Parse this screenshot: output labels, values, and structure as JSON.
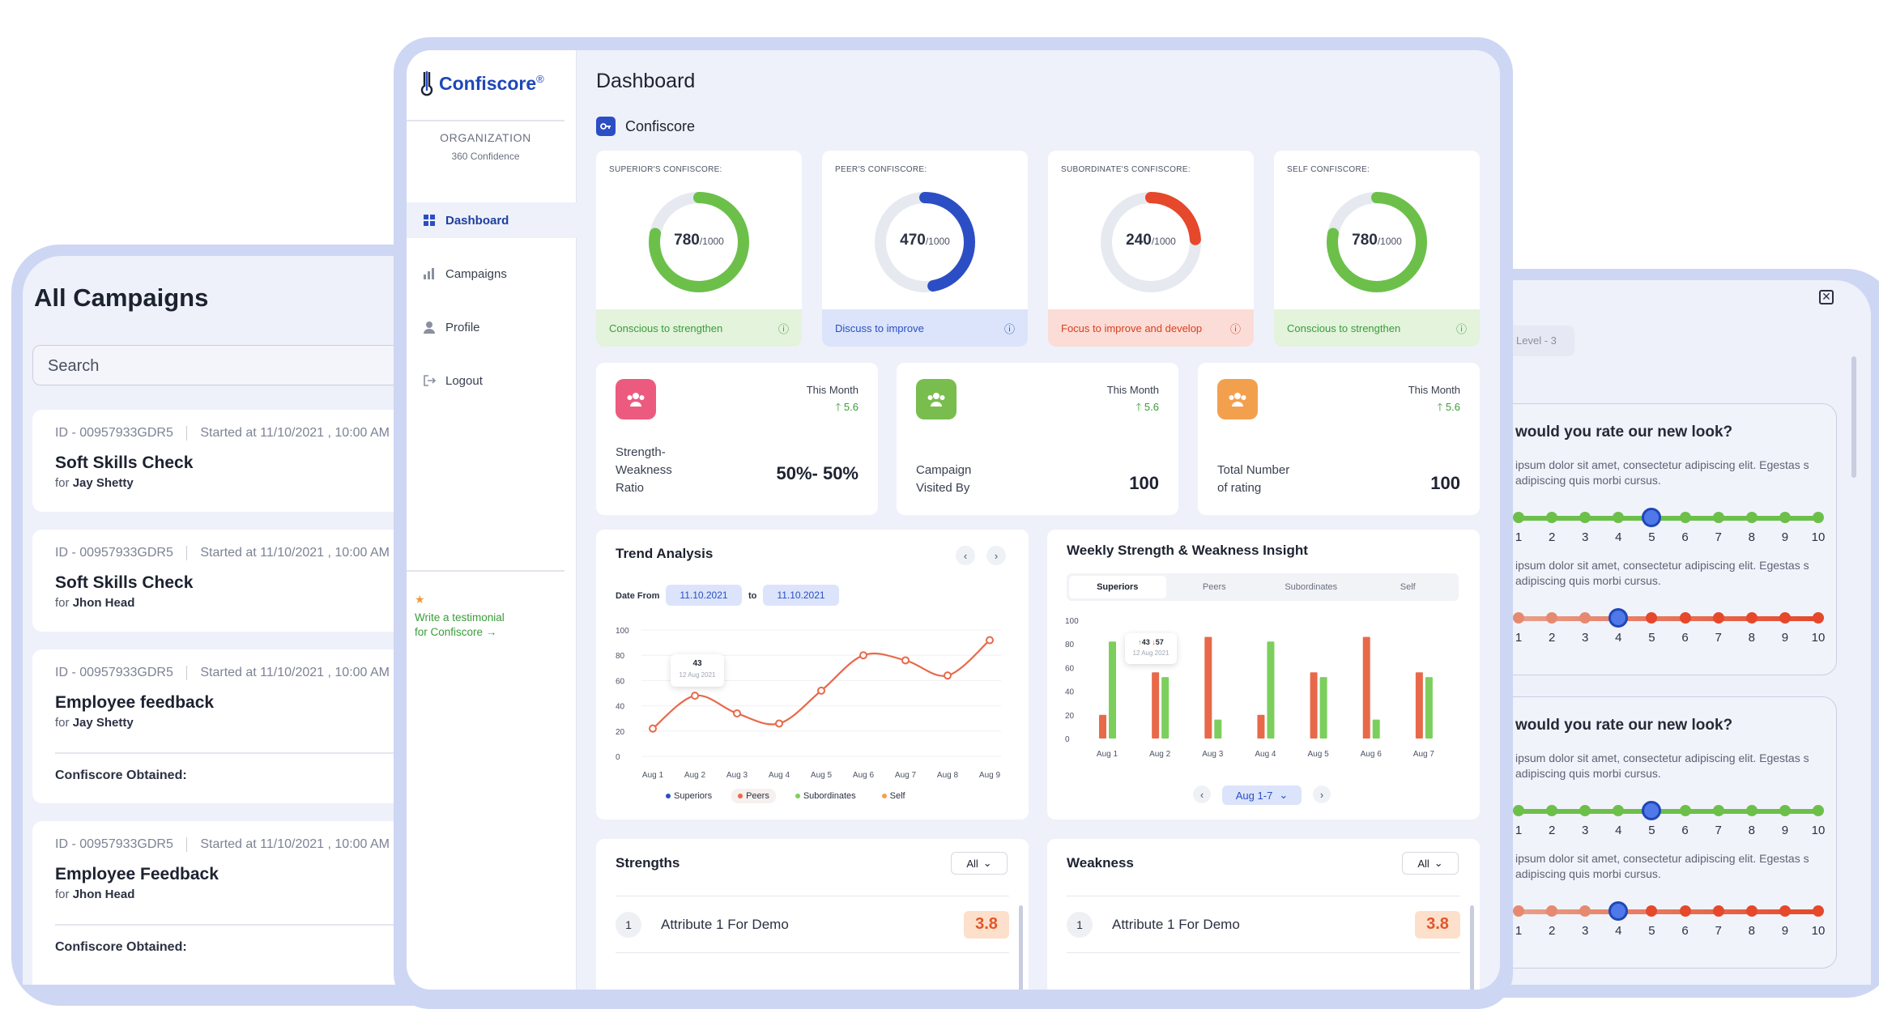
{
  "campaigns_panel": {
    "title": "All Campaigns",
    "search_placeholder": "Search",
    "items": [
      {
        "id": "ID - 00957933GDR5",
        "started": "Started at 11/10/2021 ,  10:00 AM",
        "title": "Soft Skills Check",
        "for_label": "for",
        "for_name": "Jay Shetty",
        "obtained": ""
      },
      {
        "id": "ID - 00957933GDR5",
        "started": "Started at 11/10/2021 ,  10:00 AM",
        "title": "Soft Skills Check",
        "for_label": "for",
        "for_name": "Jhon Head",
        "obtained": ""
      },
      {
        "id": "ID - 00957933GDR5",
        "started": "Started at 11/10/2021 ,  10:00 AM",
        "title": "Employee feedback",
        "for_label": "for",
        "for_name": "Jay Shetty",
        "obtained": "Confiscore Obtained:"
      },
      {
        "id": "ID - 00957933GDR5",
        "started": "Started at 11/10/2021 ,  10:00 AM",
        "title": "Employee Feedback",
        "for_label": "for",
        "for_name": "Jhon Head",
        "obtained": "Confiscore Obtained:"
      }
    ]
  },
  "rating_panel": {
    "level_chip": "Level - 3",
    "question": "would you rate our new look?",
    "desc": "ipsum dolor sit amet, consectetur adipiscing elit. Egestas s adipiscing quis morbi cursus.",
    "scale": [
      "1",
      "2",
      "3",
      "4",
      "5",
      "6",
      "7",
      "8",
      "9",
      "10"
    ],
    "cards": [
      {
        "green_value": 5,
        "red_value": 4
      },
      {
        "green_value": 5,
        "red_value": 4
      }
    ],
    "colors": {
      "green": "#6cc04a",
      "red": "#e5482a"
    }
  },
  "sidebar": {
    "logo_text": "Confiscore",
    "logo_mark": "®",
    "org_label": "ORGANIZATION",
    "org_name": "360 Confidence",
    "nav": [
      {
        "label": "Dashboard",
        "icon": "grid-icon",
        "active": true
      },
      {
        "label": "Campaigns",
        "icon": "bar-chart-icon",
        "active": false
      },
      {
        "label": "Profile",
        "icon": "user-icon",
        "active": false
      },
      {
        "label": "Logout",
        "icon": "logout-icon",
        "active": false
      }
    ],
    "testimonial_line1": "Write a testimonial",
    "testimonial_line2": "for Confiscore →"
  },
  "dashboard": {
    "title": "Dashboard",
    "section_title": "Confiscore",
    "gauges": [
      {
        "label": "SUPERIOR'S CONFISCORE:",
        "value": "780",
        "max": "/1000",
        "fraction": 0.78,
        "color": "#6cc04a",
        "footer": "Conscious to strengthen",
        "footer_bg": "#e3f3dc",
        "footer_color": "#3a9c3a"
      },
      {
        "label": "PEER'S CONFISCORE:",
        "value": "470",
        "max": "/1000",
        "fraction": 0.47,
        "color": "#2c4ec4",
        "footer": "Discuss to improve",
        "footer_bg": "#dbe4fa",
        "footer_color": "#2c4ec4"
      },
      {
        "label": "SUBORDINATE'S CONFISCORE:",
        "value": "240",
        "max": "/1000",
        "fraction": 0.24,
        "color": "#e5482a",
        "footer": "Focus to improve and develop",
        "footer_bg": "#fcdcd6",
        "footer_color": "#d8401f"
      },
      {
        "label": "SELF CONFISCORE:",
        "value": "780",
        "max": "/1000",
        "fraction": 0.78,
        "color": "#6cc04a",
        "footer": "Conscious to strengthen",
        "footer_bg": "#e3f3dc",
        "footer_color": "#3a9c3a"
      }
    ],
    "stats": [
      {
        "label": "Strength-\nWeakness\nRatio",
        "value": "50%- 50%",
        "period": "This Month",
        "change": "5.6",
        "icon_bg": "#ec5b7f"
      },
      {
        "label": "Campaign\nVisited By",
        "value": "100",
        "period": "This Month",
        "change": "5.6",
        "icon_bg": "#78bd4e"
      },
      {
        "label": "Total Number\nof rating",
        "value": "100",
        "period": "This Month",
        "change": "5.6",
        "icon_bg": "#f3a04e"
      }
    ],
    "trend": {
      "title": "Trend Analysis",
      "date_from_label": "Date From",
      "date_from": "11.10.2021",
      "to_label": "to",
      "date_to": "11.10.2021",
      "tooltip_value": "43",
      "tooltip_date": "12 Aug 2021",
      "legend": [
        "Superiors",
        "Peers",
        "Subordinates",
        "Self"
      ]
    },
    "weekly": {
      "title": "Weekly Strength & Weakness Insight",
      "tabs": [
        "Superiors",
        "Peers",
        "Subordinates",
        "Self"
      ],
      "tooltip_up": "43",
      "tooltip_down": "57",
      "tooltip_date": "12 Aug 2021",
      "range": "Aug 1-7"
    },
    "strengths": {
      "title": "Strengths",
      "filter": "All",
      "rows": [
        {
          "num": "1",
          "name": "Attribute 1 For Demo",
          "score": "3.8"
        }
      ]
    },
    "weakness": {
      "title": "Weakness",
      "filter": "All",
      "rows": [
        {
          "num": "1",
          "name": "Attribute 1 For Demo",
          "score": "3.8"
        }
      ]
    }
  },
  "chart_data": [
    {
      "type": "line",
      "x": [
        "Aug 1",
        "Aug 2",
        "Aug 3",
        "Aug 4",
        "Aug 5",
        "Aug 6",
        "Aug 7",
        "Aug 8",
        "Aug 9"
      ],
      "series": [
        {
          "name": "Peers",
          "values": [
            22,
            48,
            34,
            26,
            52,
            80,
            76,
            64,
            92
          ]
        }
      ],
      "ylim": [
        0,
        100
      ],
      "yticks": [
        "0",
        "20",
        "40",
        "60",
        "80",
        "100"
      ],
      "color": "#e8694a"
    },
    {
      "type": "bar",
      "categories": [
        "Aug 1",
        "Aug 2",
        "Aug 3",
        "Aug 4",
        "Aug 5",
        "Aug 6",
        "Aug 7"
      ],
      "series": [
        {
          "values": [
            20,
            56,
            86,
            20,
            56,
            86,
            56
          ],
          "color": "#e8694a"
        },
        {
          "values": [
            82,
            52,
            16,
            82,
            52,
            16,
            52
          ],
          "color": "#7ccf5c"
        }
      ],
      "ylim": [
        0,
        100
      ],
      "yticks": [
        "0",
        "20",
        "40",
        "60",
        "80",
        "100"
      ]
    }
  ]
}
